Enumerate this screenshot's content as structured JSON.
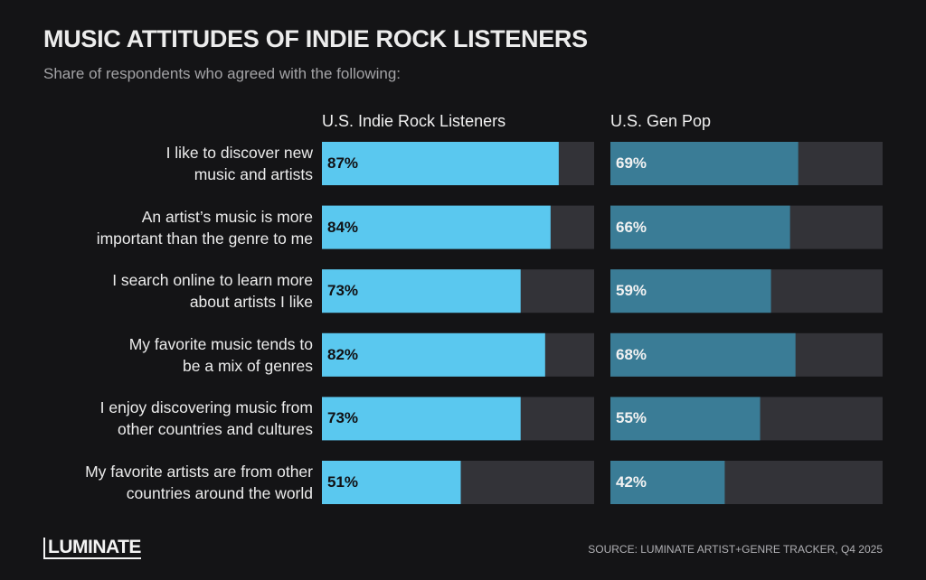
{
  "chart_data": {
    "type": "bar",
    "orientation": "horizontal",
    "title": "MUSIC ATTITUDES OF INDIE ROCK LISTENERS",
    "subtitle": "Share of respondents who agreed with the following:",
    "categories": [
      "I like to discover new\nmusic and artists",
      "An artist’s music is more\nimportant than the genre to me",
      "I search online to learn more\nabout artists I like",
      "My favorite music tends to\nbe a mix of genres",
      "I enjoy discovering music from\nother countries and cultures",
      "My favorite artists are from other\ncountries around the world"
    ],
    "series": [
      {
        "name": "U.S. Indie Rock Listeners",
        "color": "#5ac8ef",
        "label_color": "#111114",
        "values": [
          87,
          84,
          73,
          82,
          73,
          51
        ],
        "value_labels": [
          "87%",
          "84%",
          "73%",
          "82%",
          "73%",
          "51%"
        ]
      },
      {
        "name": "U.S. Gen Pop",
        "color": "#3a7c96",
        "label_color": "#f2f2f2",
        "values": [
          69,
          66,
          59,
          68,
          55,
          42
        ],
        "value_labels": [
          "69%",
          "66%",
          "59%",
          "68%",
          "55%",
          "42%"
        ]
      }
    ],
    "track_color": "#333338",
    "xlim": [
      0,
      100
    ],
    "logo": "LUMINATE",
    "source": "SOURCE: LUMINATE ARTIST+GENRE TRACKER, Q4 2025"
  }
}
